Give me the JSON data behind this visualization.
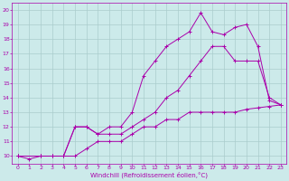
{
  "xlabel": "Windchill (Refroidissement éolien,°C)",
  "background_color": "#cceaea",
  "line_color": "#aa00aa",
  "grid_color": "#aacccc",
  "xlim": [
    -0.5,
    23.5
  ],
  "ylim": [
    9.5,
    20.5
  ],
  "xticks": [
    0,
    1,
    2,
    3,
    4,
    5,
    6,
    7,
    8,
    9,
    10,
    11,
    12,
    13,
    14,
    15,
    16,
    17,
    18,
    19,
    20,
    21,
    22,
    23
  ],
  "yticks": [
    10,
    11,
    12,
    13,
    14,
    15,
    16,
    17,
    18,
    19,
    20
  ],
  "line1_x": [
    0,
    1,
    2,
    3,
    4,
    5,
    6,
    7,
    8,
    9,
    10,
    11,
    12,
    13,
    14,
    15,
    16,
    17,
    18,
    19,
    20,
    21,
    22,
    23
  ],
  "line1_y": [
    10,
    9.8,
    10,
    10,
    10,
    10,
    10.5,
    11,
    11,
    11,
    11.5,
    12,
    12,
    12.5,
    12.5,
    13,
    13,
    13,
    13,
    13,
    13.2,
    13.3,
    13.4,
    13.5
  ],
  "line2_x": [
    0,
    2,
    3,
    4,
    5,
    6,
    7,
    8,
    9,
    10,
    11,
    12,
    13,
    14,
    15,
    16,
    17,
    18,
    19,
    20,
    21,
    22,
    23
  ],
  "line2_y": [
    10,
    10,
    10,
    10,
    12,
    12,
    11.5,
    11.5,
    11.5,
    12,
    12.5,
    13,
    14,
    14.5,
    15.5,
    16.5,
    17.5,
    17.5,
    16.5,
    16.5,
    16.5,
    14,
    13.5
  ],
  "line3_x": [
    0,
    2,
    3,
    4,
    5,
    6,
    7,
    8,
    9,
    10,
    11,
    12,
    13,
    14,
    15,
    16,
    17,
    18,
    19,
    20,
    21,
    22,
    23
  ],
  "line3_y": [
    10,
    10,
    10,
    10,
    12,
    12,
    11.5,
    12,
    12,
    13,
    15.5,
    16.5,
    17.5,
    18,
    18.5,
    19.8,
    18.5,
    18.3,
    18.8,
    19,
    17.5,
    13.8,
    13.5
  ]
}
